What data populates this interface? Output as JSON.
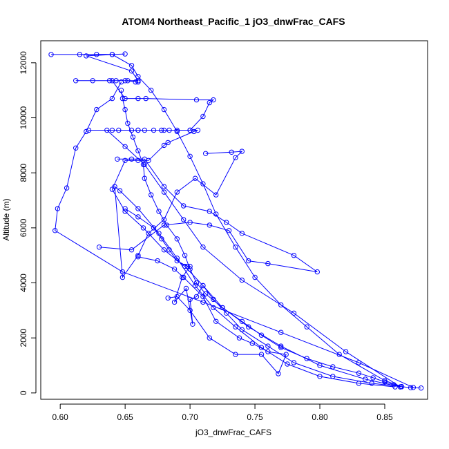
{
  "chart_data": {
    "type": "line",
    "title": "ATOM4 Northeast_Pacific_1 jO3_dnwFrac_CAFS",
    "xlabel": "jO3_dnwFrac_CAFS",
    "ylabel": "Altitude (m)",
    "xlim": [
      0.585,
      0.883
    ],
    "ylim": [
      -230,
      12800
    ],
    "x_ticks": [
      0.6,
      0.65,
      0.7,
      0.75,
      0.8,
      0.85
    ],
    "x_tick_labels": [
      "0.60",
      "0.65",
      "0.70",
      "0.75",
      "0.80",
      "0.85"
    ],
    "y_ticks": [
      0,
      2000,
      4000,
      6000,
      8000,
      10000,
      12000
    ],
    "y_tick_labels": [
      "0",
      "2000",
      "4000",
      "6000",
      "8000",
      "10000",
      "12000"
    ],
    "grid": false,
    "legend": "none",
    "series_color": "#0000ff",
    "marker": "open-circle",
    "series": [
      {
        "x": [
          0.878,
          0.87,
          0.863,
          0.857,
          0.85,
          0.841,
          0.83,
          0.81,
          0.79,
          0.77,
          0.755,
          0.74,
          0.725,
          0.712,
          0.705,
          0.7,
          0.696,
          0.69,
          0.682,
          0.676,
          0.67,
          0.665,
          0.664,
          0.66,
          0.656,
          0.652,
          0.65,
          0.648,
          0.647
        ],
        "y": [
          180,
          190,
          230,
          300,
          400,
          550,
          720,
          950,
          1250,
          1650,
          2100,
          2600,
          3100,
          3600,
          4000,
          4500,
          5000,
          5600,
          6100,
          6600,
          7200,
          7800,
          8300,
          8800,
          9300,
          9800,
          10300,
          10700,
          11000
        ]
      },
      {
        "x": [
          0.647,
          0.64,
          0.628,
          0.62,
          0.612,
          0.605,
          0.598,
          0.596,
          0.648,
          0.71,
          0.77,
          0.83,
          0.872
        ],
        "y": [
          11300,
          10700,
          10300,
          9500,
          8900,
          7450,
          6700,
          5900,
          4400,
          3300,
          2200,
          1100,
          200
        ]
      },
      {
        "x": [
          0.593,
          0.64,
          0.65,
          0.62,
          0.655,
          0.66,
          0.652,
          0.643,
          0.638,
          0.612,
          0.625,
          0.65,
          0.66,
          0.658
        ],
        "y": [
          12300,
          12300,
          12320,
          12250,
          11700,
          11350,
          11350,
          11350,
          11350,
          11350,
          11350,
          11350,
          11300,
          11300
        ]
      },
      {
        "x": [
          0.615,
          0.628,
          0.64,
          0.655,
          0.66,
          0.67,
          0.68,
          0.69,
          0.7,
          0.71,
          0.72,
          0.735,
          0.75,
          0.77,
          0.79,
          0.815,
          0.85,
          0.863
        ],
        "y": [
          12300,
          12300,
          12300,
          11900,
          11500,
          11000,
          10300,
          9500,
          8600,
          7600,
          6500,
          5300,
          4200,
          3200,
          2400,
          1400,
          450,
          230
        ]
      },
      {
        "x": [
          0.64,
          0.65,
          0.66,
          0.666,
          0.705,
          0.718,
          0.715,
          0.71,
          0.7,
          0.69,
          0.68,
          0.672,
          0.665,
          0.66,
          0.655,
          0.645,
          0.636,
          0.65,
          0.665,
          0.68,
          0.695,
          0.71,
          0.74,
          0.78,
          0.82,
          0.862
        ],
        "y": [
          11350,
          10700,
          10700,
          10700,
          10650,
          10650,
          10550,
          10050,
          9550,
          9550,
          9550,
          9550,
          9550,
          9550,
          9550,
          9550,
          9550,
          8950,
          8300,
          7300,
          6300,
          5300,
          4100,
          2900,
          1500,
          220
        ]
      },
      {
        "x": [
          0.622,
          0.64,
          0.66,
          0.678,
          0.684,
          0.7,
          0.706,
          0.703,
          0.683,
          0.68,
          0.668,
          0.66,
          0.65,
          0.64,
          0.65,
          0.664,
          0.68,
          0.696,
          0.71,
          0.725,
          0.745,
          0.77,
          0.8,
          0.835,
          0.862
        ],
        "y": [
          9550,
          9550,
          9550,
          9550,
          9550,
          9550,
          9550,
          9500,
          9100,
          9000,
          8450,
          8450,
          8450,
          7400,
          6600,
          6000,
          5200,
          4600,
          3900,
          3100,
          2400,
          1700,
          1000,
          500,
          220
        ]
      },
      {
        "x": [
          0.712,
          0.732,
          0.74,
          0.735,
          0.72,
          0.704,
          0.69,
          0.68,
          0.668,
          0.66,
          0.648,
          0.642,
          0.646,
          0.66,
          0.676,
          0.69,
          0.704,
          0.718,
          0.735,
          0.755,
          0.775,
          0.8,
          0.83,
          0.858
        ],
        "y": [
          8700,
          8750,
          8780,
          8550,
          7200,
          7800,
          7300,
          6300,
          5800,
          5000,
          4200,
          7500,
          7350,
          6700,
          5800,
          4900,
          3900,
          3100,
          2400,
          1650,
          1050,
          600,
          350,
          220
        ]
      },
      {
        "x": [
          0.644,
          0.655,
          0.665,
          0.68,
          0.695,
          0.715,
          0.728,
          0.74,
          0.78,
          0.798,
          0.76,
          0.745,
          0.73,
          0.715,
          0.7,
          0.68,
          0.655,
          0.63
        ],
        "y": [
          8500,
          8500,
          8500,
          7500,
          6800,
          6600,
          6200,
          5800,
          5000,
          4400,
          4700,
          4800,
          5900,
          6100,
          6200,
          6100,
          5200,
          5300
        ]
      },
      {
        "x": [
          0.65,
          0.66,
          0.672,
          0.678,
          0.684,
          0.69,
          0.698,
          0.7,
          0.694,
          0.688,
          0.697,
          0.702,
          0.7,
          0.705,
          0.71,
          0.718,
          0.728,
          0.74,
          0.76,
          0.78,
          0.81,
          0.84,
          0.863
        ],
        "y": [
          6700,
          6400,
          6000,
          5600,
          5200,
          4800,
          4600,
          4600,
          4200,
          3300,
          3800,
          2500,
          3400,
          3500,
          3900,
          3400,
          2900,
          2300,
          1700,
          1100,
          600,
          350,
          230
        ]
      },
      {
        "x": [
          0.66,
          0.675,
          0.688,
          0.695,
          0.71,
          0.72,
          0.738,
          0.748,
          0.76,
          0.774,
          0.768,
          0.755,
          0.735,
          0.715,
          0.7,
          0.69,
          0.683
        ],
        "y": [
          4950,
          4800,
          4500,
          4200,
          3500,
          2600,
          2000,
          1800,
          1500,
          1400,
          700,
          1400,
          1400,
          2000,
          3000,
          3500,
          3450
        ]
      }
    ]
  }
}
